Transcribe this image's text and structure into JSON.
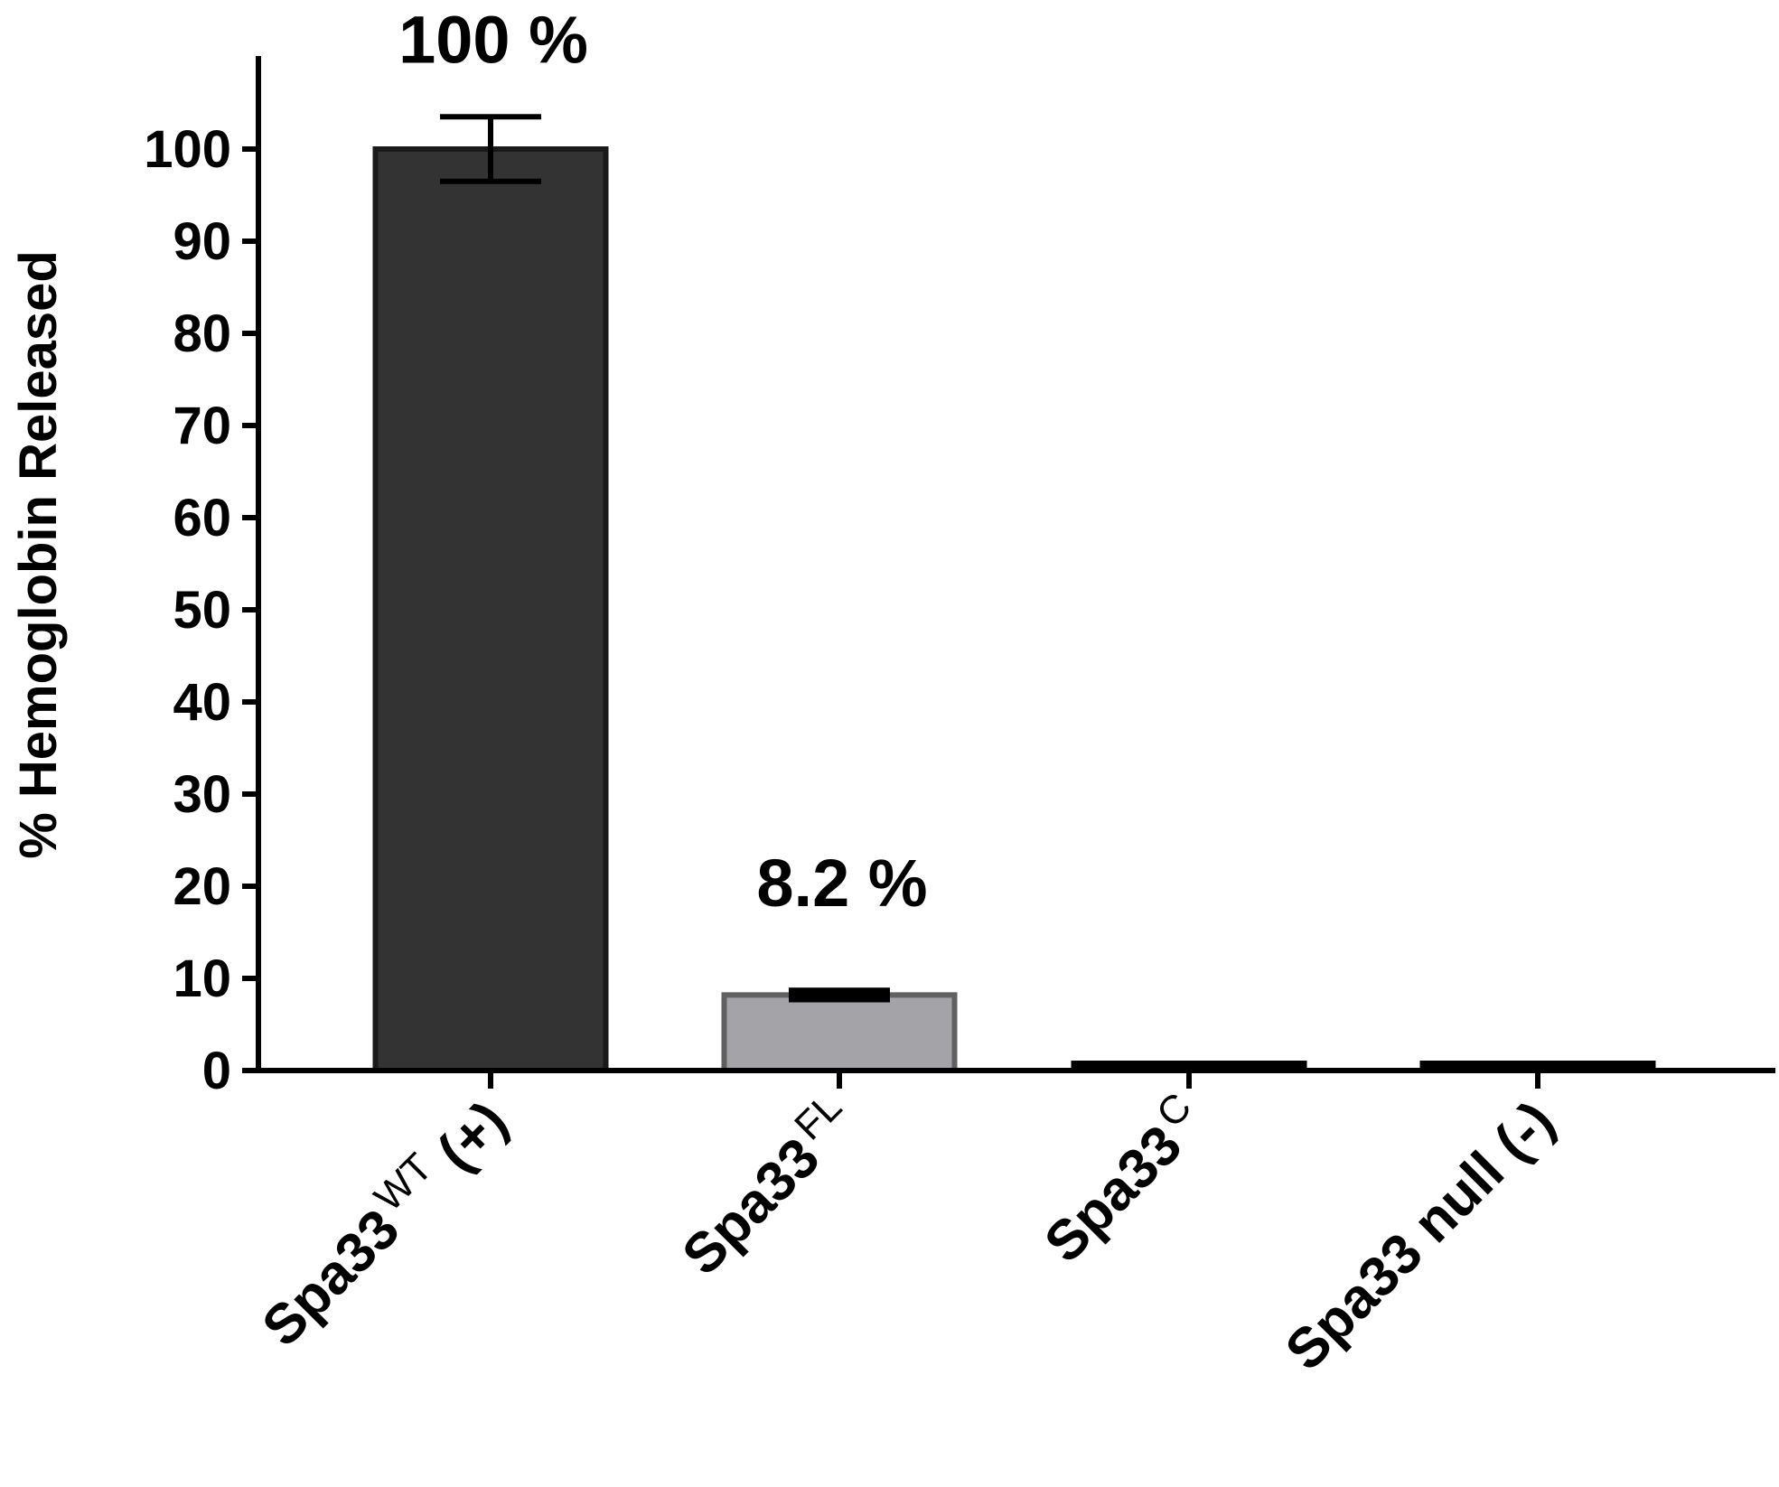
{
  "chart_data": {
    "type": "bar",
    "ylabel": "% Hemoglobin Released",
    "ylim": [
      0,
      100
    ],
    "yticks": [
      "0",
      "10",
      "20",
      "30",
      "40",
      "50",
      "60",
      "70",
      "80",
      "90",
      "100"
    ],
    "categories": [
      {
        "base": "Spa33",
        "sup": "WT",
        "suffix": " (+)"
      },
      {
        "base": "Spa33",
        "sup": "FL",
        "suffix": ""
      },
      {
        "base": "Spa33",
        "sup": "C",
        "suffix": ""
      },
      {
        "base": "Spa33 null (-)",
        "sup": "",
        "suffix": ""
      }
    ],
    "values": [
      100,
      8.2,
      0.6,
      0.4
    ],
    "errors": [
      3.5,
      0.8,
      0.5,
      0.3
    ],
    "data_labels": [
      "100 %",
      "8.2 %",
      "",
      ""
    ],
    "bar_fill": [
      "#333333",
      "#a3a3a8",
      "#000000",
      "#000000"
    ],
    "bar_stroke": [
      "#1a1a1a",
      "#606060",
      "#000000",
      "#000000"
    ],
    "grid": false,
    "legend": "none"
  }
}
